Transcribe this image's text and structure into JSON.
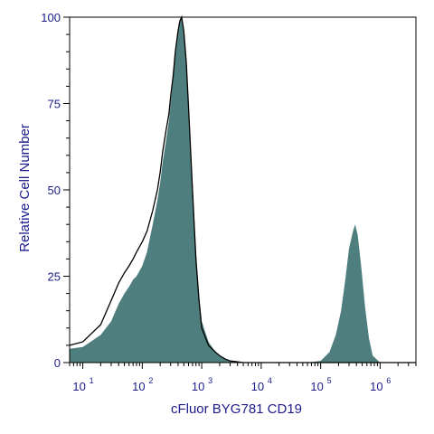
{
  "chart_data": {
    "type": "area",
    "xlabel": "cFluor BYG781 CD19",
    "ylabel": "Relative Cell Number",
    "x_scale": "log",
    "xlim": [
      6,
      4000000
    ],
    "ylim": [
      0,
      100
    ],
    "x_ticks": [
      {
        "base": "10",
        "exp": "1",
        "value": 10
      },
      {
        "base": "10",
        "exp": "2",
        "value": 100
      },
      {
        "base": "10",
        "exp": "3",
        "value": 1000
      },
      {
        "base": "10",
        "exp": "4",
        "value": 10000
      },
      {
        "base": "10",
        "exp": "5",
        "value": 100000
      },
      {
        "base": "10",
        "exp": "6",
        "value": 1000000
      }
    ],
    "y_ticks": [
      {
        "label": "0",
        "value": 0
      },
      {
        "label": "25",
        "value": 25
      },
      {
        "label": "50",
        "value": 50
      },
      {
        "label": "75",
        "value": 75
      },
      {
        "label": "100",
        "value": 100
      }
    ],
    "colors": {
      "fill": "#4e7f7e",
      "outline": "#000000",
      "axis": "#000000",
      "text": "#1c1c8c"
    },
    "series": [
      {
        "style": "filled",
        "x": [
          6,
          10,
          20,
          30,
          40,
          50,
          60,
          70,
          80,
          100,
          120,
          150,
          180,
          200,
          220,
          250,
          280,
          300,
          330,
          360,
          400,
          430,
          460,
          500,
          550,
          600,
          700,
          800,
          900,
          1000,
          1300,
          1700,
          2000,
          2500,
          3000,
          4000,
          5000,
          6000,
          10000,
          30000,
          60000,
          100000,
          140000,
          180000,
          220000,
          260000,
          300000,
          350000,
          380000,
          420000,
          480000,
          560000,
          650000,
          750000,
          1000000,
          4000000
        ],
        "y": [
          4,
          4.5,
          8,
          12,
          17,
          20,
          22,
          24,
          25,
          28,
          32,
          40,
          47,
          52,
          58,
          64,
          70,
          75,
          82,
          89,
          95,
          99,
          100,
          97,
          88,
          75,
          52,
          32,
          20,
          12,
          6,
          3,
          2,
          1,
          0.5,
          0.2,
          0,
          0,
          0,
          0,
          0,
          0.5,
          3,
          8,
          15,
          24,
          33,
          38,
          40,
          37,
          28,
          16,
          7,
          2,
          0,
          0
        ]
      },
      {
        "style": "outline",
        "x": [
          6,
          10,
          20,
          30,
          40,
          50,
          60,
          70,
          80,
          100,
          120,
          150,
          180,
          200,
          220,
          250,
          280,
          300,
          330,
          360,
          400,
          430,
          460,
          500,
          550,
          600,
          700,
          800,
          900,
          1000,
          1300,
          1700,
          2000,
          2500,
          3000,
          4000,
          5000,
          6000,
          10000,
          100000,
          1000000,
          4000000
        ],
        "y": [
          5,
          6,
          11,
          18,
          23,
          26,
          28,
          30,
          32,
          35,
          38,
          44,
          50,
          55,
          61,
          67,
          72,
          77,
          83,
          90,
          96,
          99,
          100,
          96,
          87,
          74,
          50,
          30,
          18,
          10,
          5,
          3,
          2,
          1,
          0.5,
          0.2,
          0,
          0,
          0,
          0,
          0,
          0
        ]
      }
    ]
  }
}
